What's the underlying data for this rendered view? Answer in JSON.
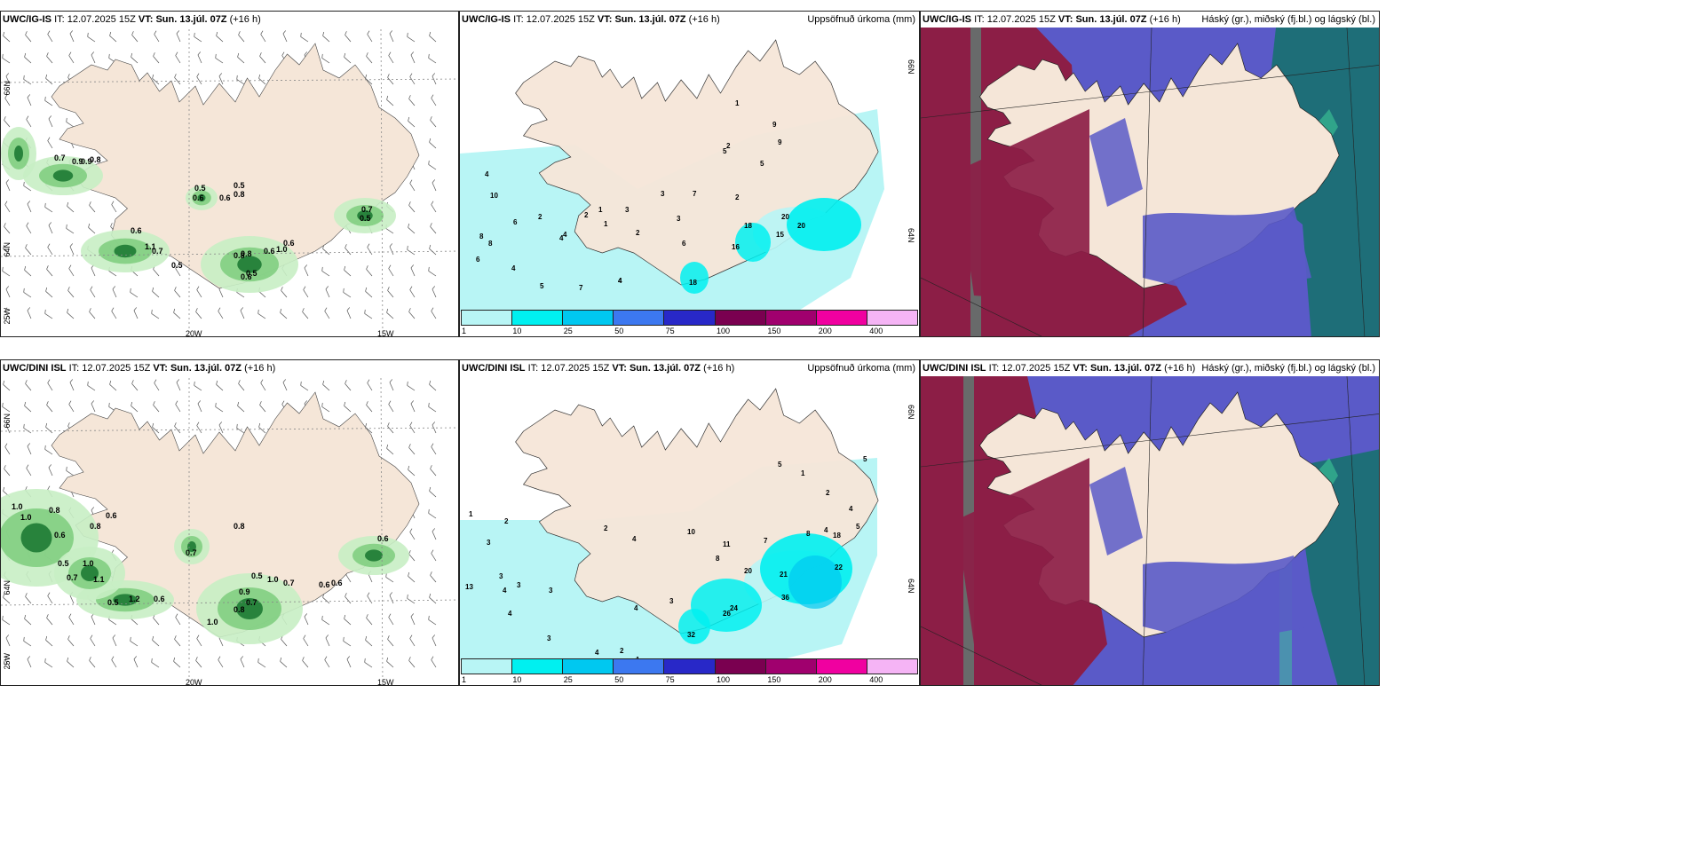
{
  "rows": [
    {
      "model": "UWC/IG-IS",
      "wind_panel": {
        "model": "UWC/IG-IS",
        "values": [
          "0.7",
          "0.9",
          "0.9",
          "0.8",
          "0.5",
          "0.6",
          "0.6",
          "0.5",
          "0.8",
          "0.7",
          "0.5",
          "0.6",
          "1.1",
          "0.7",
          "0.5",
          "0.8",
          "0.8",
          "0.6",
          "1.0",
          "0.6",
          "0.6",
          "0.5"
        ]
      },
      "precip_panel": {
        "model": "UWC/IG-IS",
        "values": [
          "4",
          "9",
          "10",
          "8",
          "8",
          "6",
          "6",
          "4",
          "5",
          "7",
          "4",
          "4",
          "2",
          "1",
          "2",
          "1",
          "3",
          "2",
          "4",
          "4",
          "3",
          "1",
          "2",
          "9",
          "5",
          "5",
          "7",
          "6",
          "2",
          "3",
          "18",
          "20",
          "15",
          "16",
          "20",
          "18"
        ]
      },
      "cloud_panel": {
        "model": "UWC/IG-IS"
      }
    },
    {
      "model": "UWC/DINI ISL",
      "wind_panel": {
        "model": "UWC/DINI ISL",
        "values": [
          "1.0",
          "0.8",
          "0.6",
          "1.0",
          "0.8",
          "0.6",
          "0.8",
          "0.5",
          "1.0",
          "0.7",
          "1.1",
          "0.5",
          "1.2",
          "0.6",
          "0.9",
          "0.5",
          "0.7",
          "1.0",
          "0.7",
          "0.6",
          "0.6",
          "0.6",
          "1.0",
          "0.8",
          "0.7"
        ]
      },
      "precip_panel": {
        "model": "UWC/DINI ISL",
        "values": [
          "1",
          "2",
          "3",
          "3",
          "4",
          "3",
          "3",
          "13",
          "4",
          "3",
          "4",
          "2",
          "1",
          "4",
          "3",
          "8",
          "10",
          "11",
          "7",
          "8",
          "5",
          "2",
          "4",
          "20",
          "24",
          "26",
          "32",
          "21",
          "36",
          "22",
          "18",
          "5",
          "1",
          "2",
          "4",
          "4",
          "5"
        ]
      },
      "cloud_panel": {
        "model": "UWC/DINI ISL"
      }
    }
  ],
  "header": {
    "it_label": "IT:",
    "it_value": "12.07.2025 15Z",
    "vt_label": "VT:",
    "vt_value": "Sun. 13.júl. 07Z",
    "lead": "(+16 h)"
  },
  "precip_title": "Uppsöfnuð úrkoma (mm)",
  "cloud_title": "Háský (gr.), miðský (fj.bl.) og lágský (bl.)",
  "axis_labels": {
    "lat66": "66N",
    "lat64": "64N",
    "lon25": "25W",
    "lon20": "20W",
    "lon15": "15W"
  },
  "precip_legend": {
    "labels": [
      "1",
      "10",
      "25",
      "50",
      "75",
      "100",
      "150",
      "200",
      "400"
    ],
    "colors": [
      "#b8f5f5",
      "#00f0f0",
      "#00c8f0",
      "#3c78f0",
      "#2828c8",
      "#7a0050",
      "#a0006e",
      "#f000a0",
      "#f5b4f5"
    ]
  },
  "colors": {
    "land": "#f5e6d8",
    "sea": "#ffffff",
    "precip_sea": "#b8f5f5",
    "wind_green_light": "#c8eec4",
    "wind_green_mid": "#7ccc7c",
    "wind_green_dark": "#1e7a34",
    "cloud_blue": "#5a5ac8",
    "cloud_maroon": "#8c1e46",
    "cloud_teal": "#1e6e78",
    "cloud_green": "#3cc896"
  }
}
